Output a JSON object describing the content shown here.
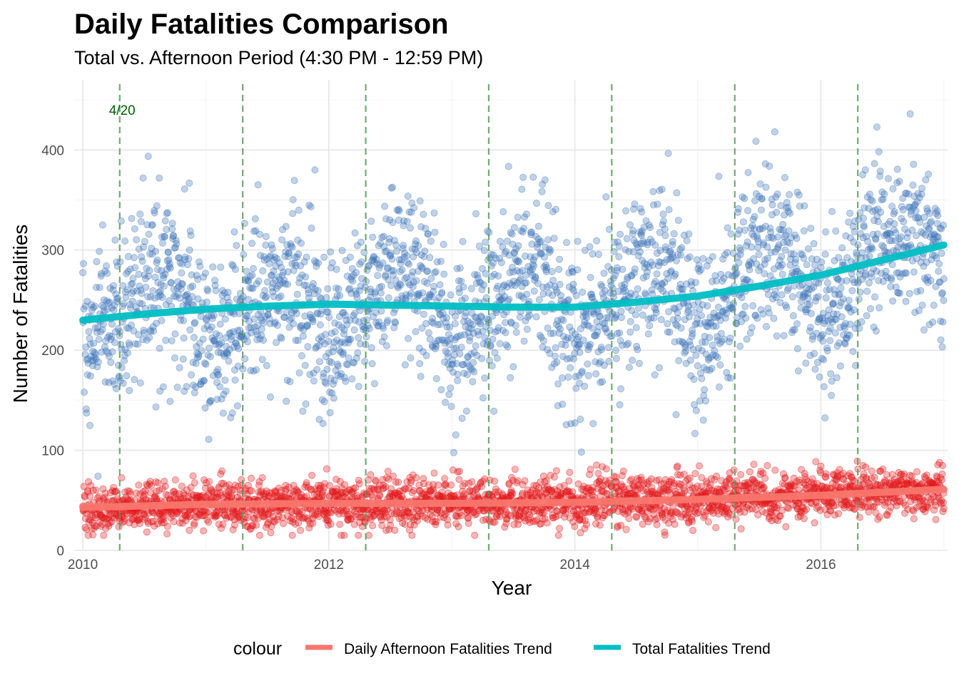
{
  "chart_data": {
    "type": "scatter",
    "title": "Daily Fatalities Comparison",
    "subtitle": "Total vs. Afternoon Period (4:30 PM - 12:59 PM)",
    "xlabel": "Year",
    "ylabel": "Number of Fatalities",
    "xlim": [
      2009.93,
      2017.03
    ],
    "ylim": [
      0,
      470
    ],
    "x_ticks": [
      2010,
      2012,
      2014,
      2016
    ],
    "x_tick_labels": [
      "2010",
      "2012",
      "2014",
      "2016"
    ],
    "y_ticks": [
      0,
      100,
      200,
      300,
      400
    ],
    "y_tick_labels": [
      "0",
      "100",
      "200",
      "300",
      "400"
    ],
    "grid": true,
    "legend": {
      "title": "colour",
      "position": "bottom",
      "entries": [
        {
          "label": "Daily Afternoon Fatalities Trend",
          "color": "#f8766d"
        },
        {
          "label": "Total Fatalities Trend",
          "color": "#00bfc4"
        }
      ]
    },
    "annotations": {
      "label": "4/20",
      "label_x": 2010.32,
      "label_y": 435,
      "line_color": "#5a9a5a",
      "vlines_x": [
        2010.3,
        2011.3,
        2012.3,
        2013.3,
        2014.3,
        2015.3,
        2016.3
      ]
    },
    "series": [
      {
        "name": "Total Fatalities Trend",
        "kind": "points",
        "color": "#3c73b8",
        "count_points": 2557,
        "x_range": [
          2010.0,
          2017.0
        ],
        "mean_by_year": [
          {
            "x": 2010.0,
            "y": 210
          },
          {
            "x": 2010.25,
            "y": 225
          },
          {
            "x": 2010.5,
            "y": 265
          },
          {
            "x": 2010.75,
            "y": 275
          },
          {
            "x": 2011.0,
            "y": 205
          },
          {
            "x": 2011.25,
            "y": 225
          },
          {
            "x": 2011.5,
            "y": 265
          },
          {
            "x": 2011.75,
            "y": 270
          },
          {
            "x": 2012.0,
            "y": 215
          },
          {
            "x": 2012.25,
            "y": 230
          },
          {
            "x": 2012.5,
            "y": 275
          },
          {
            "x": 2012.75,
            "y": 270
          },
          {
            "x": 2013.0,
            "y": 210
          },
          {
            "x": 2013.25,
            "y": 235
          },
          {
            "x": 2013.5,
            "y": 275
          },
          {
            "x": 2013.75,
            "y": 275
          },
          {
            "x": 2014.0,
            "y": 205
          },
          {
            "x": 2014.25,
            "y": 230
          },
          {
            "x": 2014.5,
            "y": 275
          },
          {
            "x": 2014.75,
            "y": 285
          },
          {
            "x": 2015.0,
            "y": 215
          },
          {
            "x": 2015.25,
            "y": 250
          },
          {
            "x": 2015.5,
            "y": 305
          },
          {
            "x": 2015.75,
            "y": 300
          },
          {
            "x": 2016.0,
            "y": 230
          },
          {
            "x": 2016.25,
            "y": 270
          },
          {
            "x": 2016.5,
            "y": 320
          },
          {
            "x": 2016.75,
            "y": 320
          },
          {
            "x": 2017.0,
            "y": 280
          }
        ]
      },
      {
        "name": "Daily Afternoon Fatalities Trend",
        "kind": "points",
        "color": "#e31a1c",
        "count_points": 2557,
        "x_range": [
          2010.0,
          2017.0
        ],
        "mean_by_year": [
          {
            "x": 2010.0,
            "y": 40
          },
          {
            "x": 2011.0,
            "y": 46
          },
          {
            "x": 2012.0,
            "y": 47
          },
          {
            "x": 2013.0,
            "y": 48
          },
          {
            "x": 2014.0,
            "y": 48
          },
          {
            "x": 2015.0,
            "y": 51
          },
          {
            "x": 2016.0,
            "y": 56
          },
          {
            "x": 2017.0,
            "y": 60
          }
        ]
      },
      {
        "name": "Total Fatalities Trend",
        "kind": "line",
        "color": "#00bfc4",
        "points": [
          {
            "x": 2010.0,
            "y": 230
          },
          {
            "x": 2010.5,
            "y": 236
          },
          {
            "x": 2011.0,
            "y": 241
          },
          {
            "x": 2011.5,
            "y": 244
          },
          {
            "x": 2012.0,
            "y": 246
          },
          {
            "x": 2012.5,
            "y": 245
          },
          {
            "x": 2013.0,
            "y": 244
          },
          {
            "x": 2013.5,
            "y": 243
          },
          {
            "x": 2014.0,
            "y": 243
          },
          {
            "x": 2014.5,
            "y": 248
          },
          {
            "x": 2015.0,
            "y": 254
          },
          {
            "x": 2015.5,
            "y": 264
          },
          {
            "x": 2016.0,
            "y": 275
          },
          {
            "x": 2016.5,
            "y": 290
          },
          {
            "x": 2017.0,
            "y": 305
          }
        ]
      },
      {
        "name": "Daily Afternoon Fatalities Trend",
        "kind": "line",
        "color": "#f8766d",
        "points": [
          {
            "x": 2010.0,
            "y": 43
          },
          {
            "x": 2011.0,
            "y": 46
          },
          {
            "x": 2012.0,
            "y": 47
          },
          {
            "x": 2013.0,
            "y": 47
          },
          {
            "x": 2014.0,
            "y": 48
          },
          {
            "x": 2015.0,
            "y": 51
          },
          {
            "x": 2016.0,
            "y": 55
          },
          {
            "x": 2017.0,
            "y": 61
          }
        ]
      }
    ]
  }
}
